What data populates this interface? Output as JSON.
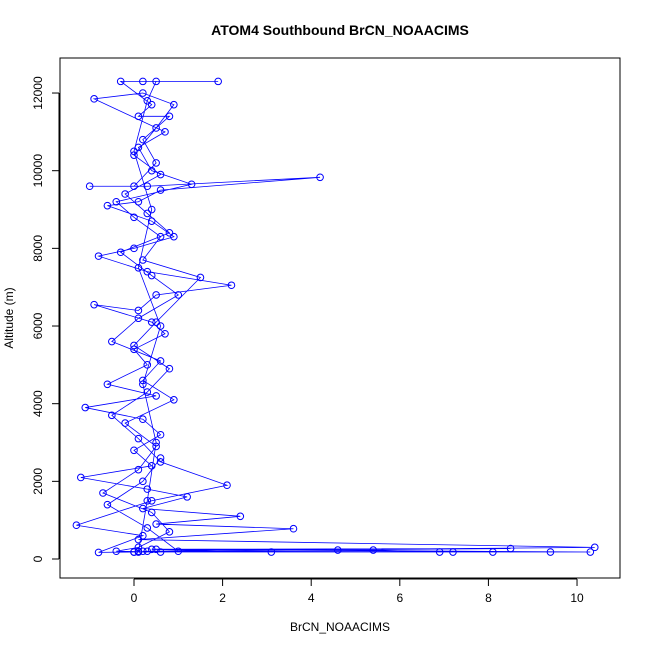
{
  "chart_data": {
    "type": "line",
    "title": "ATOM4 Southbound BrCN_NOAACIMS",
    "xlabel": "BrCN_NOAACIMS",
    "ylabel": "Altitude (m)",
    "color": "#0000ff",
    "x": [
      0.1,
      0.3,
      0.5,
      0.2,
      0.6,
      0.1,
      0.4,
      0.0,
      0.3,
      0.5,
      1.9,
      0.2,
      -0.3,
      0.4,
      0.1,
      0.8,
      0.2,
      0.5,
      0.0,
      -1.0,
      0.3,
      4.2,
      0.6,
      0.1,
      -0.6,
      0.4,
      0.9,
      0.0,
      -0.8,
      0.3,
      2.2,
      0.5,
      0.1,
      -0.9,
      0.4,
      0.7,
      0.0,
      0.3,
      -0.6,
      0.5,
      -1.1,
      0.2,
      0.6,
      0.0,
      0.4,
      -1.2,
      0.3,
      1.2,
      0.2,
      2.4,
      0.5,
      3.6,
      0.1,
      10.4,
      0.2,
      9.4,
      0.0,
      10.3,
      0.5,
      8.5,
      0.3,
      8.1,
      7.2,
      0.1,
      6.9,
      5.4,
      4.6,
      0.4,
      3.1,
      0.0,
      -0.8,
      0.2,
      -1.3,
      0.4,
      2.1,
      0.6,
      0.1,
      -0.5,
      0.3,
      0.8,
      0.0,
      0.5,
      1.5,
      0.2,
      0.6,
      0.0,
      -0.4,
      1.3,
      0.4,
      0.1,
      0.7,
      -0.9,
      0.2,
      0.9,
      0.5,
      0.0,
      0.6,
      -0.2,
      0.3,
      0.8,
      -0.3,
      0.4,
      1.0,
      0.1,
      -0.5,
      0.6,
      0.2,
      0.9,
      -0.2,
      0.5,
      0.1,
      -0.7,
      0.4,
      0.8,
      0.1,
      -0.4,
      0.6,
      1.0,
      0.3,
      -0.6,
      0.2,
      0.6
    ],
    "values": [
      200,
      1500,
      3000,
      4500,
      6000,
      7500,
      9000,
      10500,
      11800,
      12300,
      12300,
      12300,
      12300,
      11700,
      11400,
      11400,
      10800,
      10200,
      9600,
      9600,
      9600,
      9830,
      9500,
      9200,
      9100,
      8700,
      8300,
      8000,
      7800,
      7400,
      7050,
      6800,
      6400,
      6550,
      6100,
      5800,
      5400,
      5000,
      4500,
      4200,
      3900,
      3600,
      3200,
      2800,
      2400,
      2100,
      1800,
      1600,
      1300,
      1100,
      900,
      780,
      500,
      300,
      200,
      180,
      180,
      180,
      250,
      270,
      200,
      180,
      180,
      180,
      180,
      230,
      230,
      250,
      180,
      180,
      170,
      600,
      870,
      1500,
      1900,
      2500,
      3100,
      3700,
      4300,
      4900,
      5500,
      6100,
      7250,
      7700,
      8300,
      8800,
      9200,
      9650,
      10000,
      10600,
      11000,
      11850,
      12000,
      11700,
      11100,
      10400,
      9900,
      9400,
      8900,
      8400,
      7900,
      7300,
      6800,
      6200,
      5600,
      5100,
      4600,
      4100,
      3500,
      2900,
      2300,
      1700,
      1200,
      700,
      300,
      200,
      180,
      200,
      800,
      1400,
      2000,
      2600
    ],
    "xlim": [
      -1.67,
      10.97
    ],
    "xticks": [
      0,
      2,
      4,
      6,
      8,
      10
    ],
    "ylim": [
      -489,
      12902
    ],
    "yticks": [
      0,
      2000,
      4000,
      6000,
      8000,
      10000,
      12000
    ]
  }
}
